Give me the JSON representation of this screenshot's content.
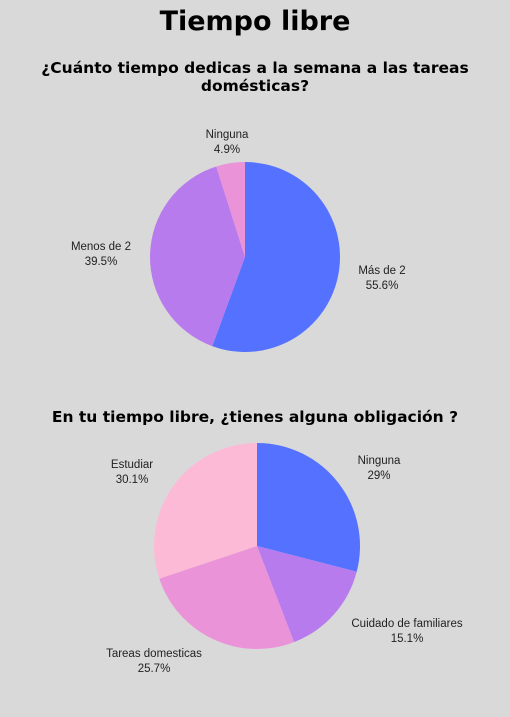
{
  "page": {
    "title": "Tiempo libre"
  },
  "colors": {
    "background": "#d9d9d9",
    "blue": "#5472ff",
    "purple": "#b87bed",
    "pink": "#ea93d9",
    "light_pink": "#fdbad7"
  },
  "chart_data": [
    {
      "type": "pie",
      "title": "¿Cuánto tiempo dedicas a la semana a las tareas domésticas?",
      "slices": [
        {
          "label": "Más de 2",
          "value": 55.6,
          "value_label": "55.6%",
          "color": "#5472ff"
        },
        {
          "label": "Menos de 2",
          "value": 39.5,
          "value_label": "39.5%",
          "color": "#b87bed"
        },
        {
          "label": "Ninguna",
          "value": 4.9,
          "value_label": "4.9%",
          "color": "#ea93d9"
        }
      ],
      "legend": "none"
    },
    {
      "type": "pie",
      "title": "En tu tiempo libre, ¿tienes alguna obligación ?",
      "slices": [
        {
          "label": "Ninguna",
          "value": 29,
          "value_label": "29%",
          "color": "#5472ff"
        },
        {
          "label": "Cuidado de familiares",
          "value": 15.1,
          "value_label": "15.1%",
          "color": "#b87bed"
        },
        {
          "label": "Tareas domesticas",
          "value": 25.7,
          "value_label": "25.7%",
          "color": "#ea93d9"
        },
        {
          "label": "Estudiar",
          "value": 30.1,
          "value_label": "30.1%",
          "color": "#fdbad7"
        }
      ],
      "legend": "none"
    }
  ]
}
